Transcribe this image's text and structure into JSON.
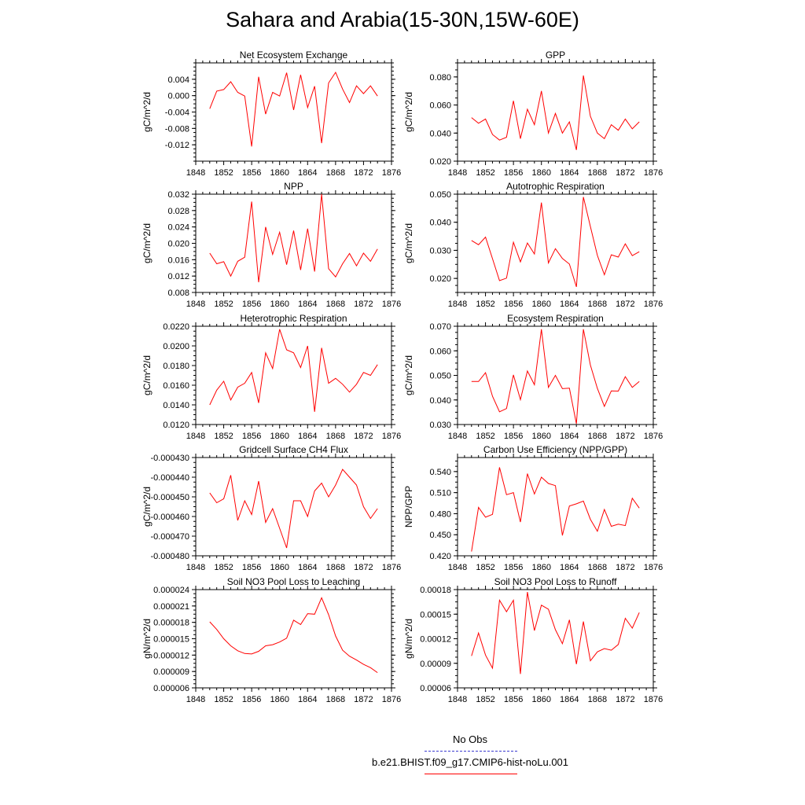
{
  "title": "Sahara and Arabia(15-30N,15W-60E)",
  "legend": {
    "items": [
      {
        "label": "No Obs",
        "color": "#3b3bd0",
        "style": "dashed"
      },
      {
        "label": "b.e21.BHIST.f09_g17.CMIP6-hist-noLu.001",
        "color": "#ff0000",
        "style": "solid"
      }
    ]
  },
  "chart_data": [
    {
      "type": "line",
      "title": "Net Ecosystem Exchange",
      "ylabel": "gC/m^2/d",
      "xlim": [
        1848,
        1876
      ],
      "xticks": [
        "1848",
        "1852",
        "1856",
        "1860",
        "1864",
        "1868",
        "1872",
        "1876"
      ],
      "ylim": [
        -0.016,
        0.008
      ],
      "yticks": [
        "0.004",
        "0.000",
        "-0.004",
        "-0.008",
        "-0.012"
      ],
      "ytick_values": [
        0.004,
        0.0,
        -0.004,
        -0.008,
        -0.012
      ],
      "line_color": "#ff0000",
      "x": [
        1850,
        1851,
        1852,
        1853,
        1854,
        1855,
        1856,
        1857,
        1858,
        1859,
        1860,
        1861,
        1862,
        1863,
        1864,
        1865,
        1866,
        1867,
        1868,
        1869,
        1870,
        1871,
        1872,
        1873,
        1874
      ],
      "y": [
        -0.0032,
        0.0011,
        0.0015,
        0.0034,
        0.0008,
        -0.0001,
        -0.0124,
        0.0046,
        -0.0045,
        0.0008,
        -0.0001,
        0.0056,
        -0.0035,
        0.0051,
        -0.0029,
        0.0023,
        -0.0116,
        0.0031,
        0.0057,
        0.0016,
        -0.0017,
        0.0024,
        0.0005,
        0.0024,
        -0.0001
      ]
    },
    {
      "type": "line",
      "title": "GPP",
      "ylabel": "gC/m^2/d",
      "xlim": [
        1848,
        1876
      ],
      "xticks": [
        "1848",
        "1852",
        "1856",
        "1860",
        "1864",
        "1868",
        "1872",
        "1876"
      ],
      "ylim": [
        0.02,
        0.09
      ],
      "yticks": [
        "0.080",
        "0.060",
        "0.040",
        "0.020"
      ],
      "ytick_values": [
        0.08,
        0.06,
        0.04,
        0.02
      ],
      "line_color": "#ff0000",
      "x": [
        1850,
        1851,
        1852,
        1853,
        1854,
        1855,
        1856,
        1857,
        1858,
        1859,
        1860,
        1861,
        1862,
        1863,
        1864,
        1865,
        1866,
        1867,
        1868,
        1869,
        1870,
        1871,
        1872,
        1873,
        1874
      ],
      "y": [
        0.051,
        0.047,
        0.05,
        0.039,
        0.035,
        0.037,
        0.063,
        0.036,
        0.057,
        0.046,
        0.07,
        0.04,
        0.054,
        0.04,
        0.048,
        0.028,
        0.081,
        0.052,
        0.04,
        0.036,
        0.046,
        0.042,
        0.05,
        0.043,
        0.048
      ]
    },
    {
      "type": "line",
      "title": "NPP",
      "ylabel": "gC/m^2/d",
      "xlim": [
        1848,
        1876
      ],
      "xticks": [
        "1848",
        "1852",
        "1856",
        "1860",
        "1864",
        "1868",
        "1872",
        "1876"
      ],
      "ylim": [
        0.008,
        0.032
      ],
      "yticks": [
        "0.032",
        "0.028",
        "0.024",
        "0.020",
        "0.016",
        "0.012",
        "0.008"
      ],
      "ytick_values": [
        0.032,
        0.028,
        0.024,
        0.02,
        0.016,
        0.012,
        0.008
      ],
      "line_color": "#ff0000",
      "x": [
        1850,
        1851,
        1852,
        1853,
        1854,
        1855,
        1856,
        1857,
        1858,
        1859,
        1860,
        1861,
        1862,
        1863,
        1864,
        1865,
        1866,
        1867,
        1868,
        1869,
        1870,
        1871,
        1872,
        1873,
        1874
      ],
      "y": [
        0.0176,
        0.015,
        0.0155,
        0.012,
        0.0156,
        0.0166,
        0.0302,
        0.0105,
        0.024,
        0.0173,
        0.0227,
        0.0148,
        0.0231,
        0.0135,
        0.0236,
        0.0131,
        0.032,
        0.0138,
        0.0118,
        0.015,
        0.0175,
        0.0145,
        0.0176,
        0.0156,
        0.0186
      ]
    },
    {
      "type": "line",
      "title": "Autotrophic Respiration",
      "ylabel": "gC/m^2/d",
      "xlim": [
        1848,
        1876
      ],
      "xticks": [
        "1848",
        "1852",
        "1856",
        "1860",
        "1864",
        "1868",
        "1872",
        "1876"
      ],
      "ylim": [
        0.015,
        0.05
      ],
      "yticks": [
        "0.050",
        "0.040",
        "0.030",
        "0.020"
      ],
      "ytick_values": [
        0.05,
        0.04,
        0.03,
        0.02
      ],
      "line_color": "#ff0000",
      "x": [
        1850,
        1851,
        1852,
        1853,
        1854,
        1855,
        1856,
        1857,
        1858,
        1859,
        1860,
        1861,
        1862,
        1863,
        1864,
        1865,
        1866,
        1867,
        1868,
        1869,
        1870,
        1871,
        1872,
        1873,
        1874
      ],
      "y": [
        0.0335,
        0.032,
        0.0347,
        0.027,
        0.0192,
        0.0201,
        0.0329,
        0.0259,
        0.0326,
        0.0287,
        0.047,
        0.0255,
        0.0306,
        0.0271,
        0.0251,
        0.017,
        0.049,
        0.0385,
        0.0282,
        0.0213,
        0.0284,
        0.0276,
        0.0323,
        0.0281,
        0.0295
      ]
    },
    {
      "type": "line",
      "title": "Heterotrophic Respiration",
      "ylabel": "gC/m^2/d",
      "xlim": [
        1848,
        1876
      ],
      "xticks": [
        "1848",
        "1852",
        "1856",
        "1860",
        "1864",
        "1868",
        "1872",
        "1876"
      ],
      "ylim": [
        0.012,
        0.022
      ],
      "yticks": [
        "0.0220",
        "0.0200",
        "0.0180",
        "0.0160",
        "0.0140",
        "0.0120"
      ],
      "ytick_values": [
        0.022,
        0.02,
        0.018,
        0.016,
        0.014,
        0.012
      ],
      "line_color": "#ff0000",
      "x": [
        1850,
        1851,
        1852,
        1853,
        1854,
        1855,
        1856,
        1857,
        1858,
        1859,
        1860,
        1861,
        1862,
        1863,
        1864,
        1865,
        1866,
        1867,
        1868,
        1869,
        1870,
        1871,
        1872,
        1873,
        1874
      ],
      "y": [
        0.014,
        0.0155,
        0.0164,
        0.0145,
        0.0158,
        0.0162,
        0.0173,
        0.0142,
        0.0193,
        0.0177,
        0.0217,
        0.0196,
        0.0193,
        0.0178,
        0.02,
        0.0133,
        0.0198,
        0.0162,
        0.0167,
        0.0161,
        0.0153,
        0.0161,
        0.0173,
        0.017,
        0.0181
      ]
    },
    {
      "type": "line",
      "title": "Ecosystem Respiration",
      "ylabel": "gC/m^2/d",
      "xlim": [
        1848,
        1876
      ],
      "xticks": [
        "1848",
        "1852",
        "1856",
        "1860",
        "1864",
        "1868",
        "1872",
        "1876"
      ],
      "ylim": [
        0.03,
        0.07
      ],
      "yticks": [
        "0.070",
        "0.060",
        "0.050",
        "0.040",
        "0.030"
      ],
      "ytick_values": [
        0.07,
        0.06,
        0.05,
        0.04,
        0.03
      ],
      "line_color": "#ff0000",
      "x": [
        1850,
        1851,
        1852,
        1853,
        1854,
        1855,
        1856,
        1857,
        1858,
        1859,
        1860,
        1861,
        1862,
        1863,
        1864,
        1865,
        1866,
        1867,
        1868,
        1869,
        1870,
        1871,
        1872,
        1873,
        1874
      ],
      "y": [
        0.0475,
        0.0475,
        0.0511,
        0.0415,
        0.0352,
        0.0365,
        0.0502,
        0.0401,
        0.0518,
        0.0462,
        0.0688,
        0.0451,
        0.05,
        0.0446,
        0.0448,
        0.0303,
        0.0688,
        0.0542,
        0.0447,
        0.0374,
        0.0437,
        0.0436,
        0.0495,
        0.0451,
        0.0475
      ]
    },
    {
      "type": "line",
      "title": "Gridcell Surface CH4 Flux",
      "ylabel": "gC/m^2/d",
      "xlim": [
        1848,
        1876
      ],
      "xticks": [
        "1848",
        "1852",
        "1856",
        "1860",
        "1864",
        "1868",
        "1872",
        "1876"
      ],
      "ylim": [
        -0.00048,
        -0.00043
      ],
      "yticks": [
        "-0.000430",
        "-0.000440",
        "-0.000450",
        "-0.000460",
        "-0.000470",
        "-0.000480"
      ],
      "ytick_values": [
        -0.00043,
        -0.00044,
        -0.00045,
        -0.00046,
        -0.00047,
        -0.00048
      ],
      "line_color": "#ff0000",
      "x": [
        1850,
        1851,
        1852,
        1853,
        1854,
        1855,
        1856,
        1857,
        1858,
        1859,
        1860,
        1861,
        1862,
        1863,
        1864,
        1865,
        1866,
        1867,
        1868,
        1869,
        1870,
        1871,
        1872,
        1873,
        1874
      ],
      "y": [
        -0.000448,
        -0.000453,
        -0.000451,
        -0.000439,
        -0.000462,
        -0.000452,
        -0.000459,
        -0.000442,
        -0.000463,
        -0.000456,
        -0.000466,
        -0.000476,
        -0.000452,
        -0.000452,
        -0.00046,
        -0.000447,
        -0.000443,
        -0.00045,
        -0.000444,
        -0.000436,
        -0.00044,
        -0.000444,
        -0.000455,
        -0.000461,
        -0.000456
      ]
    },
    {
      "type": "line",
      "title": "Carbon Use Efficiency (NPP/GPP)",
      "ylabel": "NPP/GPP",
      "xlim": [
        1848,
        1876
      ],
      "xticks": [
        "1848",
        "1852",
        "1856",
        "1860",
        "1864",
        "1868",
        "1872",
        "1876"
      ],
      "ylim": [
        0.42,
        0.56
      ],
      "yticks": [
        "0.540",
        "0.510",
        "0.480",
        "0.450",
        "0.420"
      ],
      "ytick_values": [
        0.54,
        0.51,
        0.48,
        0.45,
        0.42
      ],
      "line_color": "#ff0000",
      "x": [
        1850,
        1851,
        1852,
        1853,
        1854,
        1855,
        1856,
        1857,
        1858,
        1859,
        1860,
        1861,
        1862,
        1863,
        1864,
        1865,
        1866,
        1867,
        1868,
        1869,
        1870,
        1871,
        1872,
        1873,
        1874
      ],
      "y": [
        0.426,
        0.489,
        0.475,
        0.479,
        0.546,
        0.507,
        0.51,
        0.468,
        0.537,
        0.508,
        0.532,
        0.523,
        0.52,
        0.449,
        0.491,
        0.494,
        0.498,
        0.472,
        0.455,
        0.486,
        0.462,
        0.465,
        0.463,
        0.502,
        0.488
      ]
    },
    {
      "type": "line",
      "title": "Soil NO3 Pool Loss to Leaching",
      "ylabel": "gN/m^2/d",
      "xlim": [
        1848,
        1876
      ],
      "xticks": [
        "1848",
        "1852",
        "1856",
        "1860",
        "1864",
        "1868",
        "1872",
        "1876"
      ],
      "ylim": [
        6e-06,
        2.4e-05
      ],
      "yticks": [
        "0.000024",
        "0.000021",
        "0.000018",
        "0.000015",
        "0.000012",
        "0.000009",
        "0.000006"
      ],
      "ytick_values": [
        2.4e-05,
        2.1e-05,
        1.8e-05,
        1.5e-05,
        1.2e-05,
        9e-06,
        6e-06
      ],
      "line_color": "#ff0000",
      "x": [
        1850,
        1851,
        1852,
        1853,
        1854,
        1855,
        1856,
        1857,
        1858,
        1859,
        1860,
        1861,
        1862,
        1863,
        1864,
        1865,
        1866,
        1867,
        1868,
        1869,
        1870,
        1871,
        1872,
        1873,
        1874
      ],
      "y": [
        1.81e-05,
        1.67e-05,
        1.5e-05,
        1.37e-05,
        1.28e-05,
        1.23e-05,
        1.22e-05,
        1.27e-05,
        1.37e-05,
        1.39e-05,
        1.44e-05,
        1.51e-05,
        1.84e-05,
        1.76e-05,
        1.96e-05,
        1.95e-05,
        2.25e-05,
        1.94e-05,
        1.55e-05,
        1.29e-05,
        1.18e-05,
        1.11e-05,
        1.03e-05,
        9.7e-06,
        8.8e-06
      ]
    },
    {
      "type": "line",
      "title": "Soil NO3 Pool Loss to Runoff",
      "ylabel": "gN/m^2/d",
      "xlim": [
        1848,
        1876
      ],
      "xticks": [
        "1848",
        "1852",
        "1856",
        "1860",
        "1864",
        "1868",
        "1872",
        "1876"
      ],
      "ylim": [
        6e-05,
        0.00018
      ],
      "yticks": [
        "0.00018",
        "0.00015",
        "0.00012",
        "0.00009",
        "0.00006"
      ],
      "ytick_values": [
        0.00018,
        0.00015,
        0.00012,
        9e-05,
        6e-05
      ],
      "line_color": "#ff0000",
      "x": [
        1850,
        1851,
        1852,
        1853,
        1854,
        1855,
        1856,
        1857,
        1858,
        1859,
        1860,
        1861,
        1862,
        1863,
        1864,
        1865,
        1866,
        1867,
        1868,
        1869,
        1870,
        1871,
        1872,
        1873,
        1874
      ],
      "y": [
        9.9e-05,
        0.000127,
        0.0001,
        8.4e-05,
        0.000167,
        0.000153,
        0.000167,
        7.7e-05,
        0.000177,
        0.00013,
        0.000161,
        0.000156,
        0.000131,
        0.000114,
        0.000143,
        8.9e-05,
        0.000141,
        9.3e-05,
        0.000104,
        0.000108,
        0.000106,
        0.000113,
        0.000145,
        0.000133,
        0.000152
      ]
    }
  ]
}
